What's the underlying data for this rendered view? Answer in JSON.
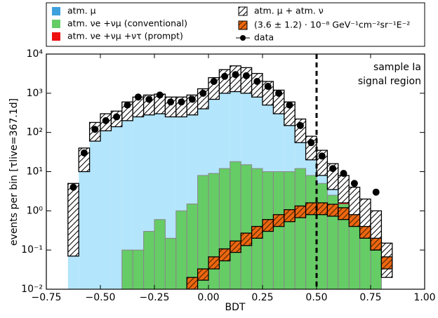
{
  "chart_data": {
    "type": "histogram",
    "xlabel": "BDT",
    "ylabel": "events per bin [τlive=367.1d]",
    "annotations": [
      "sample Ia",
      "signal region"
    ],
    "cut_x": 0.5,
    "log_y": true,
    "xlim": [
      -0.75,
      1.0
    ],
    "ylim": [
      0.01,
      10000
    ],
    "xticks": [
      {
        "value": -0.75,
        "label": "−0.75"
      },
      {
        "value": -0.5,
        "label": "−0.50"
      },
      {
        "value": -0.25,
        "label": "−0.25"
      },
      {
        "value": 0,
        "label": "0.00"
      },
      {
        "value": 0.25,
        "label": "0.25"
      },
      {
        "value": 0.5,
        "label": "0.50"
      },
      {
        "value": 0.75,
        "label": "0.75"
      },
      {
        "value": 1.0,
        "label": "1.00"
      }
    ],
    "yticks": [
      {
        "value": 0.01,
        "label": "10⁻²"
      },
      {
        "value": 0.1,
        "label": "10⁻¹"
      },
      {
        "value": 1,
        "label": "10⁰"
      },
      {
        "value": 10,
        "label": "10¹"
      },
      {
        "value": 100,
        "label": "10²"
      },
      {
        "value": 1000,
        "label": "10³"
      },
      {
        "value": 10000,
        "label": "10⁴"
      }
    ],
    "bins": [
      -0.65,
      -0.6,
      -0.55,
      -0.5,
      -0.45,
      -0.4,
      -0.35,
      -0.3,
      -0.25,
      -0.2,
      -0.15,
      -0.1,
      -0.05,
      0,
      0.05,
      0.1,
      0.15,
      0.2,
      0.25,
      0.3,
      0.35,
      0.4,
      0.45,
      0.5,
      0.55,
      0.6,
      0.65,
      0.7,
      0.75,
      0.8,
      0.85
    ],
    "series": [
      {
        "name": "atm. μ",
        "color": "#b3e5fc",
        "legend_color": "#3ea0dc",
        "values": [
          1.5,
          20,
          100,
          180,
          220,
          350,
          450,
          500,
          550,
          450,
          450,
          500,
          700,
          1300,
          2000,
          2200,
          2000,
          1500,
          1000,
          600,
          300,
          100,
          30,
          12,
          5,
          2,
          0.8,
          0.3,
          null,
          null
        ]
      },
      {
        "name": "atm. νe +νμ (conventional)",
        "color": "#66cc66",
        "values": [
          null,
          null,
          null,
          null,
          null,
          0.1,
          0.1,
          0.3,
          0.6,
          0.2,
          1.0,
          1.5,
          8,
          9,
          12,
          18,
          15,
          12,
          10,
          10,
          10,
          12,
          8,
          5,
          2.5,
          1.5,
          0.8,
          0.4,
          0.1,
          null
        ]
      },
      {
        "name": "atm. νe +νμ +ντ (prompt)",
        "color": "#ee1111",
        "values": [
          null,
          null,
          null,
          null,
          null,
          null,
          null,
          null,
          null,
          null,
          null,
          null,
          null,
          null,
          null,
          null,
          null,
          null,
          null,
          null,
          null,
          null,
          null,
          null,
          null,
          0.15,
          0.3,
          0.3,
          0.2,
          null
        ]
      },
      {
        "name": "atm. μ + atm. ν",
        "color": "#000000",
        "low": [
          0.07,
          10,
          60,
          110,
          140,
          200,
          250,
          280,
          300,
          250,
          250,
          280,
          400,
          700,
          1000,
          1100,
          1000,
          800,
          500,
          300,
          150,
          55,
          20,
          8,
          3.5,
          1.6,
          0.7,
          0.3,
          0.1,
          0.02
        ],
        "high": [
          5,
          40,
          180,
          300,
          350,
          600,
          800,
          900,
          950,
          800,
          800,
          900,
          1300,
          2500,
          4000,
          5000,
          4500,
          3200,
          2000,
          1200,
          600,
          220,
          80,
          35,
          16,
          8,
          4,
          2,
          1,
          0.15
        ]
      },
      {
        "name": "(3.6 ± 1.2) · 10⁻⁸ GeV⁻¹cm⁻²sr⁻¹E⁻²",
        "color": "#ee6611",
        "low": [
          null,
          null,
          null,
          null,
          null,
          null,
          null,
          null,
          null,
          null,
          null,
          0.01,
          0.017,
          0.033,
          0.053,
          0.087,
          0.13,
          0.2,
          0.3,
          0.4,
          0.53,
          0.67,
          0.8,
          0.8,
          0.73,
          0.6,
          0.4,
          0.2,
          0.1,
          0.033
        ],
        "high": [
          null,
          null,
          null,
          null,
          null,
          null,
          null,
          null,
          null,
          null,
          null,
          0.02,
          0.033,
          0.067,
          0.107,
          0.17,
          0.27,
          0.4,
          0.6,
          0.8,
          1.07,
          1.33,
          1.6,
          1.6,
          1.47,
          1.2,
          0.8,
          0.4,
          0.2,
          0.067
        ]
      },
      {
        "name": "data",
        "color": "#000000",
        "values": [
          4,
          30,
          120,
          200,
          250,
          500,
          800,
          700,
          900,
          600,
          600,
          700,
          1000,
          2000,
          2700,
          3000,
          2800,
          2000,
          1500,
          1000,
          500,
          150,
          55,
          25,
          12,
          9,
          5,
          null,
          3,
          null
        ]
      }
    ]
  }
}
